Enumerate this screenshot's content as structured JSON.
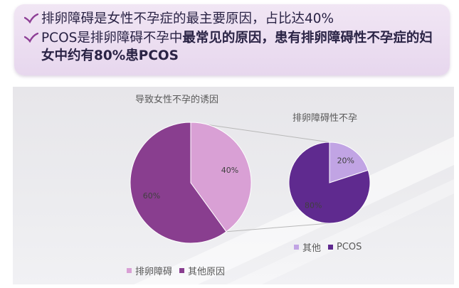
{
  "callout": {
    "bullets": [
      {
        "parts": [
          {
            "text": "排卵障碍是女性不孕症的最主要原因，占比达40%",
            "bold": false
          }
        ]
      },
      {
        "parts": [
          {
            "text": "PCOS是排卵障碍不孕中",
            "bold": false
          },
          {
            "text": "最常见的原因，患有排卵障碍性不孕症的妇女中约有80%患PCOS",
            "bold": true
          }
        ]
      }
    ],
    "check_color": "#8e3f96"
  },
  "chart_data": [
    {
      "type": "pie",
      "title": "导致女性不孕的诱因",
      "slices": [
        {
          "label": "排卵障碍",
          "value": 40,
          "value_label": "40%",
          "color": "#d9a0d5"
        },
        {
          "label": "其他原因",
          "value": 60,
          "value_label": "60%",
          "color": "#893e8f"
        }
      ],
      "legend_position": "bottom"
    },
    {
      "type": "pie",
      "title": "排卵障碍性不孕",
      "slices": [
        {
          "label": "其他",
          "value": 20,
          "value_label": "20%",
          "color": "#c1a4e4"
        },
        {
          "label": "PCOS",
          "value": 80,
          "value_label": "80%",
          "color": "#5f2a8f"
        }
      ],
      "legend_position": "bottom"
    }
  ]
}
